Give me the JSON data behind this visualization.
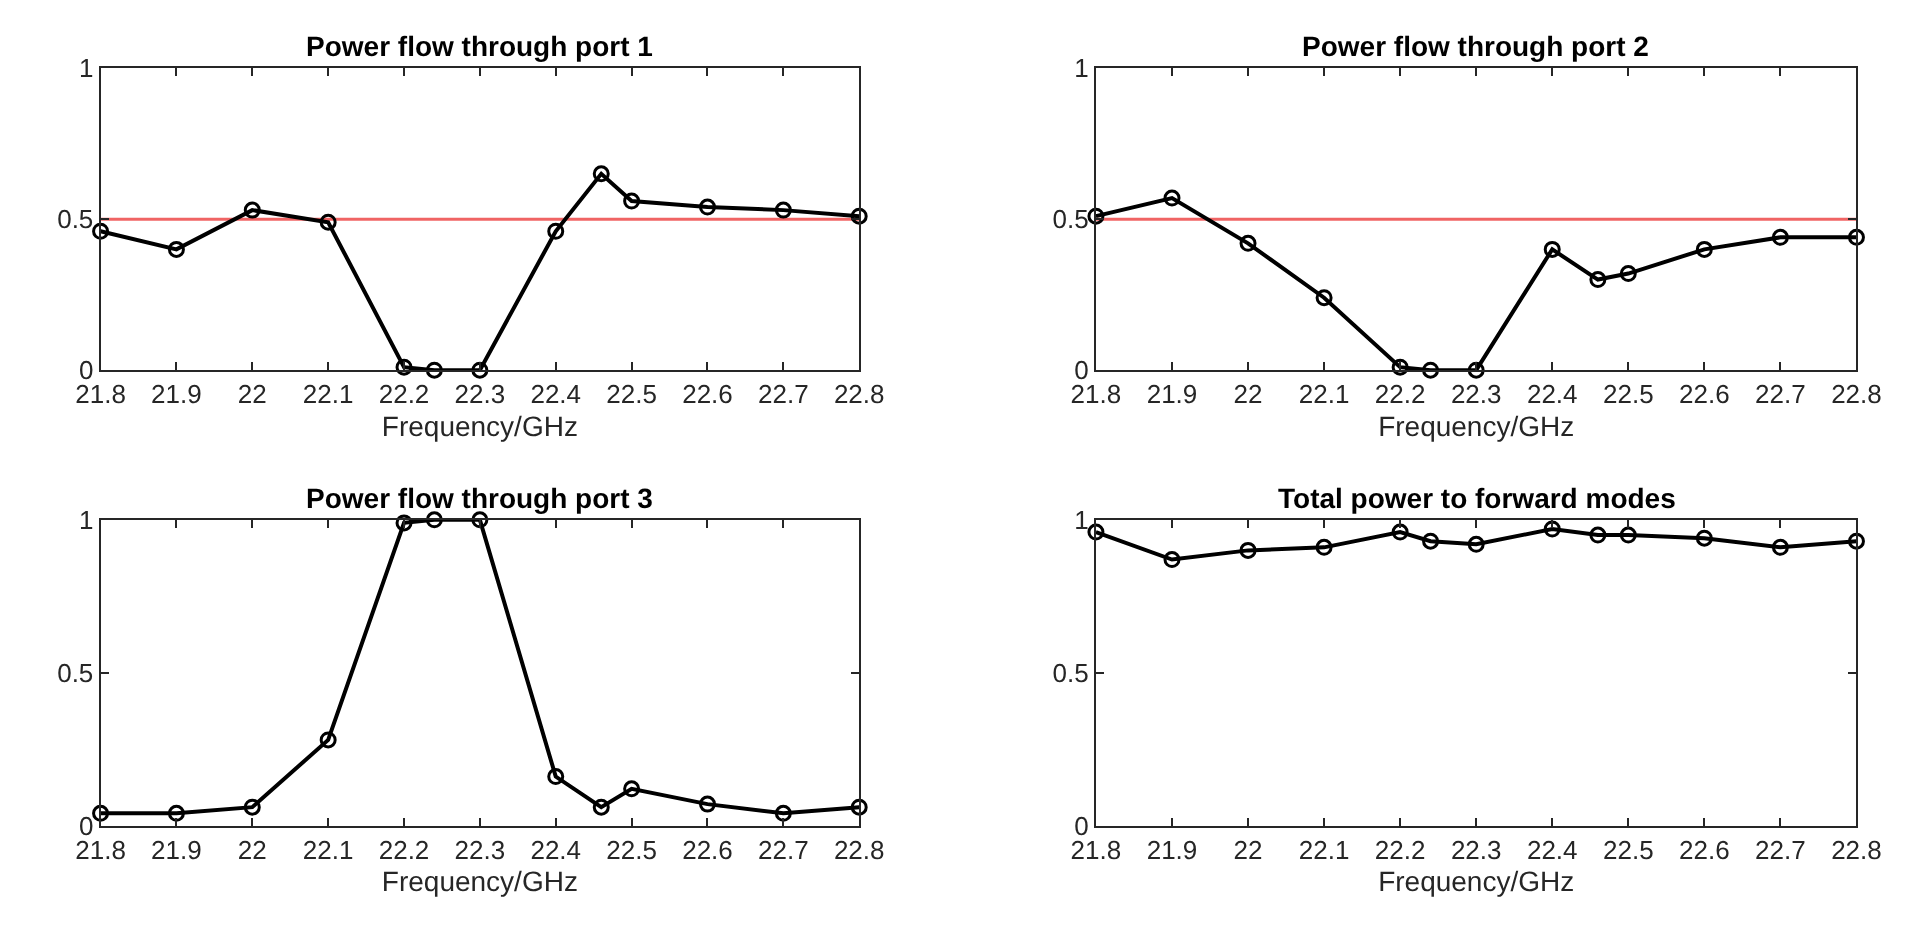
{
  "chart_data": [
    {
      "type": "line",
      "title": "Power flow through port 1",
      "xlabel": "Frequency/GHz",
      "x": [
        21.8,
        21.9,
        22.0,
        22.1,
        22.2,
        22.24,
        22.3,
        22.4,
        22.46,
        22.5,
        22.6,
        22.7,
        22.8
      ],
      "series": [
        {
          "color": "#000000",
          "values": [
            0.46,
            0.4,
            0.53,
            0.49,
            0.01,
            0.0,
            0.0,
            0.46,
            0.65,
            0.56,
            0.54,
            0.53,
            0.51
          ]
        }
      ],
      "xlim": [
        21.8,
        22.8
      ],
      "xticks": [
        21.8,
        21.9,
        22,
        22.1,
        22.2,
        22.3,
        22.4,
        22.5,
        22.6,
        22.7,
        22.8
      ],
      "ylim": [
        0,
        1
      ],
      "yticks": [
        0,
        0.5,
        1
      ],
      "grid": false,
      "marker": "circle",
      "line_style": "solid",
      "ref_lines": [
        {
          "axis": "y",
          "value": 0.5,
          "color": "#f06464"
        }
      ]
    },
    {
      "type": "line",
      "title": "Power flow through port 2",
      "xlabel": "Frequency/GHz",
      "x": [
        21.8,
        21.9,
        22.0,
        22.1,
        22.2,
        22.24,
        22.3,
        22.4,
        22.46,
        22.5,
        22.6,
        22.7,
        22.8
      ],
      "series": [
        {
          "color": "#000000",
          "values": [
            0.51,
            0.57,
            0.42,
            0.24,
            0.01,
            0.0,
            0.0,
            0.4,
            0.3,
            0.32,
            0.4,
            0.44,
            0.44
          ]
        }
      ],
      "xlim": [
        21.8,
        22.8
      ],
      "xticks": [
        21.8,
        21.9,
        22,
        22.1,
        22.2,
        22.3,
        22.4,
        22.5,
        22.6,
        22.7,
        22.8
      ],
      "ylim": [
        0,
        1
      ],
      "yticks": [
        0,
        0.5,
        1
      ],
      "grid": false,
      "marker": "circle",
      "line_style": "solid",
      "ref_lines": [
        {
          "axis": "y",
          "value": 0.5,
          "color": "#f06464"
        }
      ]
    },
    {
      "type": "line",
      "title": "Power flow through port 3",
      "xlabel": "Frequency/GHz",
      "x": [
        21.8,
        21.9,
        22.0,
        22.1,
        22.2,
        22.24,
        22.3,
        22.4,
        22.46,
        22.5,
        22.6,
        22.7,
        22.8
      ],
      "series": [
        {
          "color": "#000000",
          "values": [
            0.04,
            0.04,
            0.06,
            0.28,
            0.99,
            1.0,
            1.0,
            0.16,
            0.06,
            0.12,
            0.07,
            0.04,
            0.06
          ]
        }
      ],
      "xlim": [
        21.8,
        22.8
      ],
      "xticks": [
        21.8,
        21.9,
        22,
        22.1,
        22.2,
        22.3,
        22.4,
        22.5,
        22.6,
        22.7,
        22.8
      ],
      "ylim": [
        0,
        1
      ],
      "yticks": [
        0,
        0.5,
        1
      ],
      "grid": false,
      "marker": "circle",
      "line_style": "solid"
    },
    {
      "type": "line",
      "title": "Total power to forward modes",
      "xlabel": "Frequency/GHz",
      "x": [
        21.8,
        21.9,
        22.0,
        22.1,
        22.2,
        22.24,
        22.3,
        22.4,
        22.46,
        22.5,
        22.6,
        22.7,
        22.8
      ],
      "series": [
        {
          "color": "#000000",
          "values": [
            0.96,
            0.87,
            0.9,
            0.91,
            0.96,
            0.93,
            0.92,
            0.97,
            0.95,
            0.95,
            0.94,
            0.91,
            0.93
          ]
        }
      ],
      "xlim": [
        21.8,
        22.8
      ],
      "xticks": [
        21.8,
        21.9,
        22,
        22.1,
        22.2,
        22.3,
        22.4,
        22.5,
        22.6,
        22.7,
        22.8
      ],
      "ylim": [
        0,
        1
      ],
      "yticks": [
        0,
        0.5,
        1
      ],
      "grid": false,
      "marker": "circle",
      "line_style": "solid"
    }
  ]
}
